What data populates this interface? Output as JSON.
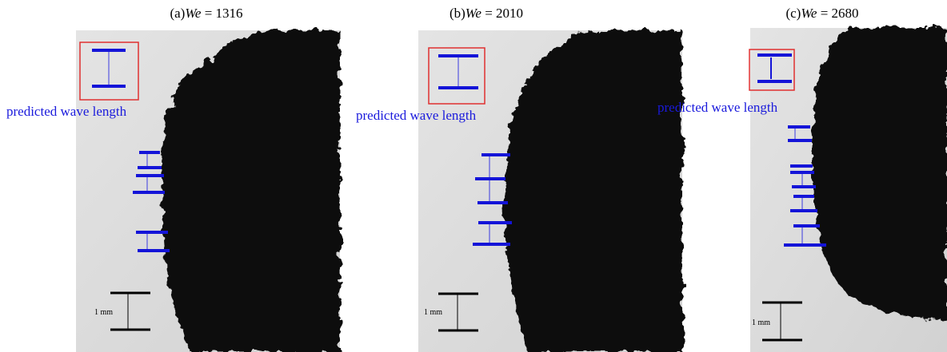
{
  "panels": [
    {
      "label": "(a)",
      "symbol": "We",
      "value": "= 1316",
      "annotation": "predicted wave length",
      "scale": "1 mm"
    },
    {
      "label": "(b)",
      "symbol": "We",
      "value": "= 2010",
      "annotation": "predicted wave length",
      "scale": "1 mm"
    },
    {
      "label": "(c)",
      "symbol": "We",
      "value": "= 2680",
      "annotation": "predicted wave length",
      "scale": "1 mm"
    }
  ]
}
